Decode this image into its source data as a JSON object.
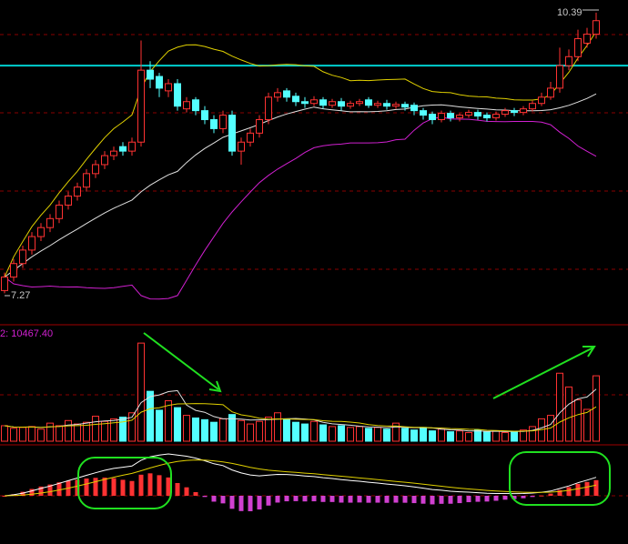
{
  "chart_data": {
    "type": "candlestick",
    "open": [
      7.3,
      7.45,
      7.6,
      7.75,
      7.9,
      8.0,
      8.1,
      8.25,
      8.35,
      8.45,
      8.6,
      8.7,
      8.8,
      8.9,
      8.85,
      8.95,
      9.75,
      9.68,
      9.52,
      9.6,
      9.32,
      9.42,
      9.3,
      9.2,
      9.1,
      9.25,
      8.85,
      8.95,
      9.05,
      9.2,
      9.45,
      9.52,
      9.46,
      9.4,
      9.38,
      9.42,
      9.36,
      9.4,
      9.35,
      9.38,
      9.42,
      9.36,
      9.38,
      9.35,
      9.37,
      9.36,
      9.3,
      9.26,
      9.2,
      9.27,
      9.22,
      9.25,
      9.28,
      9.25,
      9.22,
      9.26,
      9.3,
      9.28,
      9.32,
      9.38,
      9.45,
      9.55,
      9.8,
      9.9,
      10.05,
      10.15
    ],
    "high": [
      7.5,
      7.65,
      7.8,
      7.95,
      8.05,
      8.15,
      8.3,
      8.4,
      8.5,
      8.65,
      8.75,
      8.85,
      8.9,
      8.95,
      9.0,
      10.08,
      9.85,
      9.72,
      9.65,
      9.65,
      9.45,
      9.45,
      9.35,
      9.25,
      9.3,
      9.3,
      9.0,
      9.1,
      9.25,
      9.5,
      9.55,
      9.55,
      9.5,
      9.45,
      9.46,
      9.45,
      9.43,
      9.44,
      9.41,
      9.43,
      9.45,
      9.41,
      9.42,
      9.4,
      9.4,
      9.39,
      9.33,
      9.29,
      9.3,
      9.3,
      9.27,
      9.31,
      9.31,
      9.28,
      9.29,
      9.33,
      9.33,
      9.35,
      9.41,
      9.5,
      9.62,
      10.0,
      9.98,
      10.2,
      10.22,
      10.39
    ],
    "low": [
      7.27,
      7.4,
      7.55,
      7.7,
      7.85,
      7.95,
      8.05,
      8.2,
      8.3,
      8.4,
      8.55,
      8.65,
      8.75,
      8.8,
      8.8,
      8.9,
      9.55,
      9.45,
      9.45,
      9.3,
      9.28,
      9.25,
      9.15,
      9.05,
      9.05,
      8.8,
      8.7,
      8.9,
      9.0,
      9.15,
      9.4,
      9.4,
      9.35,
      9.33,
      9.35,
      9.32,
      9.33,
      9.3,
      9.32,
      9.35,
      9.33,
      9.33,
      9.31,
      9.32,
      9.3,
      9.25,
      9.2,
      9.15,
      9.17,
      9.18,
      9.18,
      9.22,
      9.2,
      9.18,
      9.19,
      9.23,
      9.24,
      9.25,
      9.29,
      9.35,
      9.42,
      9.5,
      9.75,
      9.85,
      10.0,
      10.1
    ],
    "close": [
      7.45,
      7.6,
      7.75,
      7.9,
      8.0,
      8.1,
      8.25,
      8.35,
      8.45,
      8.6,
      8.7,
      8.8,
      8.85,
      8.85,
      8.95,
      9.75,
      9.65,
      9.55,
      9.6,
      9.35,
      9.4,
      9.3,
      9.2,
      9.1,
      9.25,
      8.85,
      8.95,
      9.05,
      9.2,
      9.45,
      9.5,
      9.45,
      9.4,
      9.38,
      9.42,
      9.36,
      9.4,
      9.35,
      9.38,
      9.4,
      9.36,
      9.38,
      9.35,
      9.37,
      9.34,
      9.3,
      9.25,
      9.2,
      9.27,
      9.22,
      9.25,
      9.28,
      9.24,
      9.22,
      9.26,
      9.3,
      9.28,
      9.32,
      9.38,
      9.45,
      9.55,
      9.8,
      9.9,
      10.1,
      10.15,
      10.3
    ],
    "volume": [
      1800,
      1500,
      1600,
      1700,
      1400,
      2100,
      1800,
      2400,
      2000,
      2200,
      2900,
      2300,
      2600,
      2800,
      3300,
      11400,
      5800,
      3600,
      4700,
      3900,
      3000,
      2700,
      2500,
      2200,
      2600,
      3100,
      2400,
      2000,
      2300,
      2800,
      3300,
      2600,
      2200,
      2000,
      2300,
      1900,
      1700,
      1800,
      1600,
      1700,
      1500,
      1600,
      1400,
      2100,
      1500,
      1300,
      1600,
      1200,
      1400,
      1100,
      1200,
      1000,
      1300,
      1100,
      1200,
      1000,
      1100,
      1300,
      1700,
      2600,
      3000,
      7900,
      6300,
      4800,
      3700,
      7600
    ],
    "volume_label": "2: 10467.40",
    "ylim": [
      6.94,
      10.53
    ],
    "vlim": [
      0,
      13000
    ],
    "level": 9.8,
    "grid": true,
    "colors": {
      "up": "#ff3232",
      "down": "#54ffff",
      "mid": "#e0e0e0",
      "upper": "#e0d000",
      "lower": "#d020d0",
      "level": "#00d0d0",
      "dif": "#ffffff",
      "dea": "#e0d000",
      "neg": "#d040d0"
    }
  }
}
